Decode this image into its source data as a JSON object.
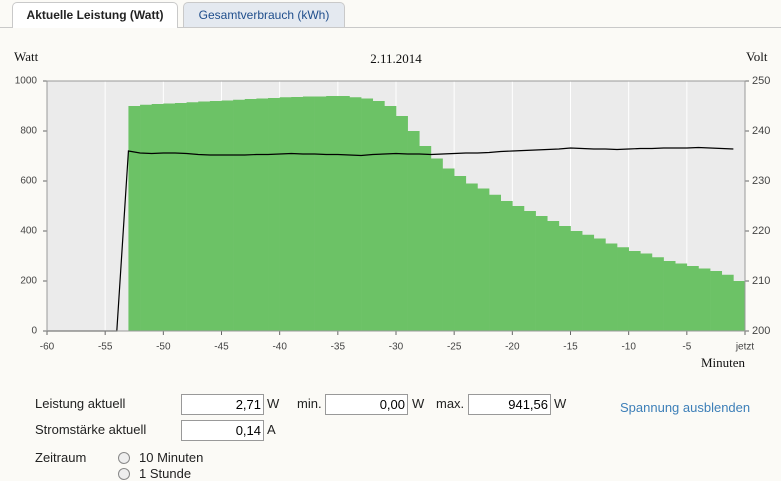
{
  "tabs": [
    "Aktuelle Leistung (Watt)",
    "Gesamtverbrauch (kWh)"
  ],
  "chart_data": {
    "type": "bar-line",
    "title": "2.11.2014",
    "y_label": "Watt",
    "y2_label": "Volt",
    "x_label": "Minuten",
    "x": [
      -60,
      -59,
      -58,
      -57,
      -56,
      -55,
      -54,
      -53,
      -52,
      -51,
      -50,
      -49,
      -48,
      -47,
      -46,
      -45,
      -44,
      -43,
      -42,
      -41,
      -40,
      -39,
      -38,
      -37,
      -36,
      -35,
      -34,
      -33,
      -32,
      -31,
      -30,
      -29,
      -28,
      -27,
      -26,
      -25,
      -24,
      -23,
      -22,
      -21,
      -20,
      -19,
      -18,
      -17,
      -16,
      -15,
      -14,
      -13,
      -12,
      -11,
      -10,
      -9,
      -8,
      -7,
      -6,
      -5,
      -4,
      -3,
      -2,
      -1
    ],
    "series": [
      {
        "color": "#6cc266",
        "values": [
          0,
          0,
          0,
          0,
          0,
          0,
          0,
          900,
          905,
          908,
          910,
          912,
          915,
          918,
          920,
          922,
          925,
          928,
          930,
          932,
          935,
          936,
          938,
          938,
          940,
          940,
          935,
          930,
          920,
          900,
          860,
          800,
          740,
          690,
          650,
          620,
          590,
          570,
          545,
          520,
          500,
          480,
          460,
          440,
          420,
          400,
          385,
          370,
          350,
          335,
          320,
          310,
          295,
          280,
          270,
          260,
          250,
          240,
          225,
          200
        ]
      },
      {
        "color": "#000000",
        "axis": "y2",
        "values": [
          200,
          200,
          200,
          200,
          200,
          200,
          200,
          236,
          235.6,
          235.5,
          235.6,
          235.6,
          235.5,
          235.3,
          235.2,
          235.2,
          235.2,
          235.2,
          235.3,
          235.3,
          235.4,
          235.5,
          235.4,
          235.4,
          235.3,
          235.3,
          235.2,
          235.1,
          235.3,
          235.4,
          235.5,
          235.4,
          235.4,
          235.3,
          235.4,
          235.5,
          235.6,
          235.6,
          235.7,
          235.9,
          236,
          236.1,
          236.2,
          236.3,
          236.4,
          236.6,
          236.5,
          236.4,
          236.4,
          236.3,
          236.4,
          236.5,
          236.5,
          236.6,
          236.6,
          236.6,
          236.7,
          236.6,
          236.5,
          236.4
        ]
      }
    ],
    "xlim": [
      -60,
      0
    ],
    "xticks": [
      -60,
      -55,
      -50,
      -45,
      -40,
      -35,
      -30,
      -25,
      -20,
      -15,
      -10,
      -5,
      {
        "value": 0,
        "label": "jetzt"
      }
    ],
    "ylim": [
      0,
      1000
    ],
    "yticks": [
      0,
      200,
      400,
      600,
      800,
      1000
    ],
    "y2lim": [
      200,
      250
    ],
    "y2ticks": [
      200,
      210,
      220,
      230,
      240,
      250
    ],
    "grid": true
  },
  "form": {
    "power": {
      "label": "Leistung aktuell",
      "value": "2,71",
      "unit": "W",
      "min_label": "min.",
      "min_value": "0,00",
      "min_unit": "W",
      "max_label": "max.",
      "max_value": "941,56",
      "max_unit": "W"
    },
    "current": {
      "label": "Stromstärke aktuell",
      "value": "0,14",
      "unit": "A"
    },
    "period": {
      "label": "Zeitraum",
      "options": [
        "10 Minuten",
        "1 Stunde"
      ]
    },
    "toggle_link": "Spannung ausblenden"
  }
}
